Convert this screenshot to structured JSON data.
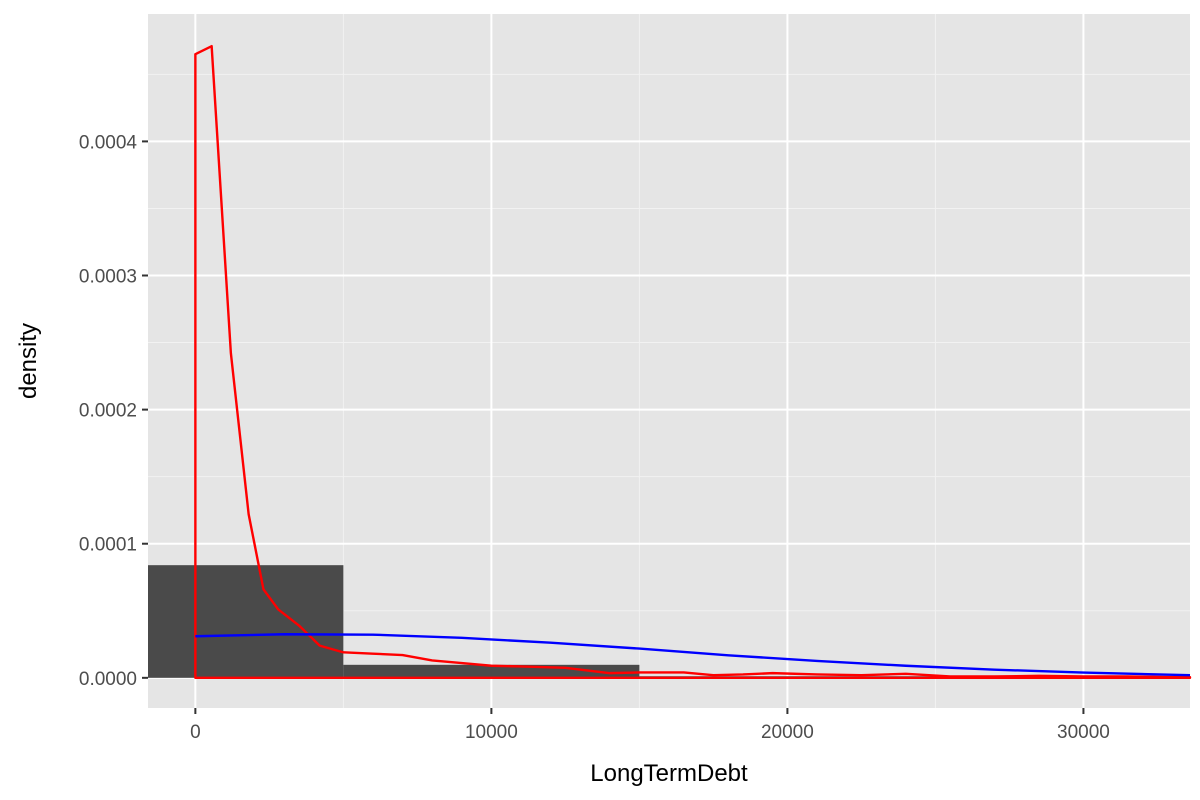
{
  "chart_data": {
    "type": "histogram",
    "title": "",
    "xlabel": "LongTermDebt",
    "ylabel": "density",
    "xlim": [
      -1600,
      33600
    ],
    "ylim": [
      -2.25e-05,
      0.000495
    ],
    "x_ticks": [
      0,
      10000,
      20000,
      30000
    ],
    "x_tick_labels": [
      "0",
      "10000",
      "20000",
      "30000"
    ],
    "y_ticks": [
      0,
      0.0001,
      0.0002,
      0.0003,
      0.0004
    ],
    "y_tick_labels": [
      "0.0000",
      "0.0001",
      "0.0002",
      "0.0003",
      "0.0004"
    ],
    "grid": true,
    "background": "#E5E5E5",
    "bars": [
      {
        "x0": -5000,
        "x1": 5000,
        "density": 8.4e-05
      },
      {
        "x0": 5000,
        "x1": 15000,
        "density": 9.7e-06
      },
      {
        "x0": 15000,
        "x1": 25000,
        "density": 1.2e-06
      },
      {
        "x0": 25000,
        "x1": 35000,
        "density": 5e-07
      }
    ],
    "bar_color": "#4A4A4A",
    "series": [
      {
        "color": "#FF0000",
        "style": "line",
        "closed_to_baseline": true,
        "x": [
          0,
          550,
          1200,
          1800,
          2300,
          2800,
          3500,
          4200,
          5000,
          6000,
          7000,
          8000,
          9000,
          10000,
          11000,
          12500,
          14000,
          15000,
          16500,
          17500,
          18500,
          19500,
          21000,
          22500,
          24000,
          25500,
          27000,
          28500,
          30000,
          31500,
          33600
        ],
        "y": [
          0.000465,
          0.000471,
          0.000242,
          0.000122,
          6.6e-05,
          5.1e-05,
          3.9e-05,
          2.4e-05,
          1.9e-05,
          1.8e-05,
          1.7e-05,
          1.3e-05,
          1.1e-05,
          9e-06,
          8.5e-06,
          7.5e-06,
          3.5e-06,
          4e-06,
          4e-06,
          2e-06,
          2.5e-06,
          3.5e-06,
          2.5e-06,
          2e-06,
          3e-06,
          1e-06,
          1e-06,
          1.5e-06,
          1e-06,
          1e-06,
          5e-07
        ]
      },
      {
        "color": "#0000FF",
        "style": "line",
        "x": [
          0,
          3000,
          6000,
          9000,
          12000,
          15000,
          18000,
          21000,
          24000,
          27000,
          30000,
          33600
        ],
        "y": [
          3.1e-05,
          3.25e-05,
          3.22e-05,
          2.98e-05,
          2.62e-05,
          2.18e-05,
          1.68e-05,
          1.26e-05,
          9e-06,
          6.1e-06,
          3.9e-06,
          2e-06
        ]
      }
    ]
  }
}
